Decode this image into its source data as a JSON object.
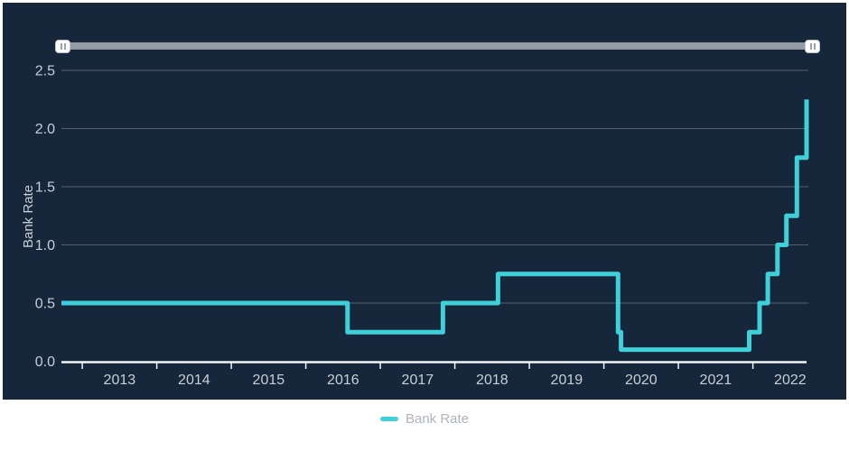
{
  "colors": {
    "panel_bg": "#16273c",
    "line": "#3fd1da",
    "grid": "#55616f",
    "axis": "#f2f4f6",
    "tick_label": "#c9ced6",
    "legend_text": "#aeb4bd",
    "slider_track": "#949ba4",
    "slider_handle": "#fdfdfd"
  },
  "slider": {
    "type": "range-navigator",
    "handles": [
      "left",
      "right"
    ],
    "position": "top"
  },
  "legend": {
    "items": [
      {
        "label": "Bank Rate",
        "marker_color": "#3fd1da"
      }
    ]
  },
  "chart_data": {
    "type": "line",
    "step": true,
    "title": "",
    "xlabel": "",
    "ylabel": "Bank Rate",
    "series": [
      {
        "name": "Bank Rate",
        "color": "#3fd1da",
        "points": [
          {
            "date": "2012-09",
            "x": 2012.72,
            "rate": 0.5
          },
          {
            "date": "2016-08",
            "x": 2016.56,
            "rate": 0.25
          },
          {
            "date": "2017-11",
            "x": 2017.84,
            "rate": 0.5
          },
          {
            "date": "2018-08",
            "x": 2018.58,
            "rate": 0.75
          },
          {
            "date": "2020-03",
            "x": 2020.19,
            "rate": 0.25
          },
          {
            "date": "2020-03",
            "x": 2020.23,
            "rate": 0.1
          },
          {
            "date": "2021-12",
            "x": 2021.95,
            "rate": 0.25
          },
          {
            "date": "2022-02",
            "x": 2022.09,
            "rate": 0.5
          },
          {
            "date": "2022-03",
            "x": 2022.2,
            "rate": 0.75
          },
          {
            "date": "2022-05",
            "x": 2022.33,
            "rate": 1.0
          },
          {
            "date": "2022-06",
            "x": 2022.45,
            "rate": 1.25
          },
          {
            "date": "2022-08",
            "x": 2022.59,
            "rate": 1.75
          },
          {
            "date": "2022-09",
            "x": 2022.72,
            "rate": 2.25
          }
        ]
      }
    ],
    "x_tick_labels": [
      "2013",
      "2014",
      "2015",
      "2016",
      "2017",
      "2018",
      "2019",
      "2020",
      "2021",
      "2022"
    ],
    "y_tick_labels": [
      "0.0",
      "0.5",
      "1.0",
      "1.5",
      "2.0",
      "2.5"
    ],
    "xlim": [
      2012.72,
      2022.75
    ],
    "ylim": [
      0,
      2.5
    ],
    "grid": "horizontal",
    "legend_position": "bottom-center"
  }
}
